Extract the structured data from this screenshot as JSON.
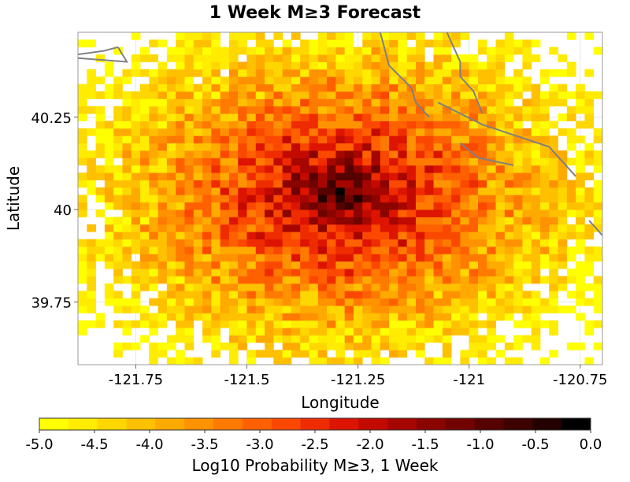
{
  "chart_data": {
    "type": "heatmap",
    "title": "1 Week M≥3 Forecast",
    "xlabel": "Longitude",
    "ylabel": "Latitude",
    "xlim": [
      -121.88,
      -120.7
    ],
    "ylim": [
      39.58,
      40.48
    ],
    "cell_size_deg": 0.02,
    "x_ticks": [
      -121.75,
      -121.5,
      -121.25,
      -121,
      -120.75
    ],
    "x_tick_labels": [
      "-121.75",
      "-121.5",
      "-121.25",
      "-121",
      "-120.75"
    ],
    "y_ticks": [
      39.75,
      40,
      40.25
    ],
    "y_tick_labels": [
      "39.75",
      "40",
      "40.25"
    ],
    "grid": true,
    "peak": {
      "lon": -121.29,
      "lat": 40.04,
      "log10_probability": -0.05
    },
    "decay_per_degree": 7.3,
    "fill_threshold": -5.0,
    "fault_traces": [
      [
        [
          -121.79,
          40.44
        ],
        [
          -121.82,
          40.43
        ],
        [
          -121.88,
          40.42
        ]
      ],
      [
        [
          -121.79,
          40.44
        ],
        [
          -121.77,
          40.4
        ],
        [
          -121.88,
          40.41
        ]
      ],
      [
        [
          -121.2,
          40.48
        ],
        [
          -121.18,
          40.39
        ],
        [
          -121.13,
          40.33
        ],
        [
          -121.12,
          40.29
        ],
        [
          -121.09,
          40.25
        ]
      ],
      [
        [
          -121.05,
          40.48
        ],
        [
          -121.02,
          40.4
        ],
        [
          -121.02,
          40.36
        ],
        [
          -120.99,
          40.32
        ],
        [
          -120.97,
          40.26
        ]
      ],
      [
        [
          -121.07,
          40.29
        ],
        [
          -120.97,
          40.23
        ],
        [
          -120.82,
          40.17
        ],
        [
          -120.76,
          40.09
        ]
      ],
      [
        [
          -121.02,
          40.18
        ],
        [
          -120.98,
          40.14
        ],
        [
          -120.9,
          40.12
        ]
      ],
      [
        [
          -120.73,
          39.97
        ],
        [
          -120.7,
          39.93
        ]
      ]
    ],
    "colorbar": {
      "label": "Log10 Probability M≥3, 1 Week",
      "min": -5.0,
      "max": 0.0,
      "ticks": [
        -5.0,
        -4.5,
        -4.0,
        -3.5,
        -3.0,
        -2.5,
        -2.0,
        -1.5,
        -1.0,
        -0.5,
        0.0
      ],
      "tick_labels": [
        "-5.0",
        "-4.5",
        "-4.0",
        "-3.5",
        "-3.0",
        "-2.5",
        "-2.0",
        "-1.5",
        "-1.0",
        "-0.5",
        "0.0"
      ],
      "colors": [
        "#ffff00",
        "#ffec00",
        "#ffd700",
        "#ffc000",
        "#ffaa00",
        "#ff9200",
        "#ff7a00",
        "#ff6000",
        "#fb4800",
        "#ef2c00",
        "#dd1400",
        "#c30a00",
        "#a60600",
        "#8a0400",
        "#700300",
        "#560200",
        "#3d0100",
        "#240000",
        "#000000"
      ]
    },
    "colors": {
      "fault": "#808080",
      "grid": "#e6e6e6",
      "frame": "#999999"
    }
  }
}
